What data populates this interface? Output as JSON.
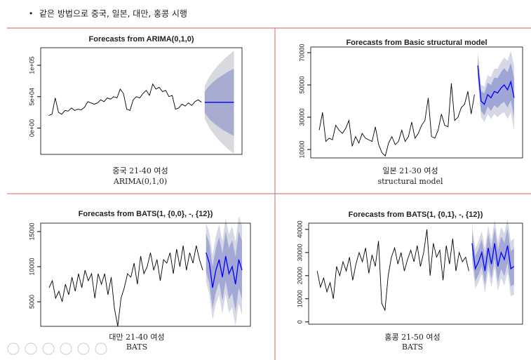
{
  "bullet": "같은 방법으로 중국, 일본, 대만, 홍콩 시행",
  "captions": [
    [
      "중국 21-40 여성",
      "ARIMA(0,1,0)"
    ],
    [
      "일본 21-30 여성",
      "structural model"
    ],
    [
      "대만 21-40 여성",
      "BATS"
    ],
    [
      "홍콩 21-50 여성",
      "BATS"
    ]
  ],
  "chart_data": [
    {
      "type": "line",
      "title": "Forecasts from ARIMA(0,1,0)",
      "color": "#000000",
      "ylim": [
        -42000,
        128000
      ],
      "yticks": [
        {
          "value": 0,
          "label": "0e+00"
        },
        {
          "value": 50000,
          "label": "5e+04"
        },
        {
          "value": 100000,
          "label": "1e+05"
        }
      ],
      "values": [
        20000,
        22000,
        48000,
        25000,
        22000,
        28000,
        27000,
        32000,
        28000,
        30000,
        29000,
        33000,
        42000,
        40000,
        38000,
        40000,
        45000,
        42000,
        48000,
        46000,
        50000,
        48000,
        62000,
        55000,
        30000,
        28000,
        45000,
        50000,
        48000,
        55000,
        60000,
        52000,
        70000,
        62000,
        65000,
        58000,
        60000,
        50000,
        52000,
        30000,
        32000,
        38000,
        35000,
        40000,
        36000,
        42000,
        45000,
        41000
      ],
      "forecast": {
        "color": "#0000ff",
        "fill80": "#a7acd0",
        "fill95": "#d9d9e0",
        "values": [
          41000,
          41000,
          41000,
          41000,
          41000,
          41000,
          41000,
          41000,
          41000,
          41000
        ],
        "hi95": [
          67000,
          77700,
          86000,
          93000,
          99200,
          104700,
          109900,
          114600,
          119000,
          123200
        ],
        "lo95": [
          15000,
          4300,
          -4000,
          -11000,
          -17200,
          -22700,
          -27900,
          -32600,
          -37000,
          -41200
        ],
        "hi80": [
          58000,
          65000,
          70400,
          75000,
          79100,
          82700,
          86100,
          89100,
          92000,
          94700
        ],
        "lo80": [
          24000,
          17000,
          11600,
          7000,
          2900,
          -700,
          -4100,
          -7100,
          -10000,
          -12700
        ]
      }
    },
    {
      "type": "line",
      "title": "Forecasts from Basic structural model",
      "color": "#000000",
      "ylim": [
        4800,
        73500
      ],
      "yticks": [
        10000,
        30000,
        50000,
        70000
      ],
      "values": [
        22000,
        33000,
        15000,
        17000,
        16000,
        25000,
        22000,
        20000,
        23000,
        28000,
        12000,
        18000,
        14000,
        20000,
        17000,
        16000,
        15000,
        24000,
        13000,
        8000,
        6000,
        14000,
        18000,
        13000,
        15000,
        22000,
        15000,
        18000,
        27000,
        17000,
        20000,
        25000,
        28000,
        42000,
        18000,
        17000,
        22000,
        32000,
        25000,
        24000,
        51000,
        28000,
        30000,
        36000,
        38000,
        46000,
        32000,
        44000
      ],
      "forecast": {
        "color": "#0000ff",
        "fill80": "#9fa6d6",
        "fill95": "#d6d8e6",
        "values": [
          62000,
          40000,
          38000,
          44000,
          42000,
          46000,
          45000,
          48000,
          50000,
          47000,
          52000,
          42000
        ],
        "hi95": [
          71000,
          50000,
          49000,
          56000,
          55000,
          60000,
          60000,
          64000,
          67000,
          65000,
          71000,
          62000
        ],
        "lo95": [
          53000,
          30000,
          27000,
          32000,
          29000,
          32000,
          30000,
          32000,
          33000,
          29000,
          33000,
          22000
        ],
        "hi80": [
          67600,
          46200,
          44800,
          51400,
          50000,
          54600,
          54200,
          57800,
          60400,
          58000,
          63600,
          54200
        ],
        "lo80": [
          56400,
          33800,
          31200,
          36600,
          34000,
          37400,
          35800,
          38200,
          39600,
          36000,
          40400,
          29800
        ]
      }
    },
    {
      "type": "line",
      "title": "Forecasts from BATS(1, {0,0}, -, {12})",
      "color": "#000000",
      "ylim": [
        1500,
        16200
      ],
      "yticks": [
        5000,
        10000,
        15000
      ],
      "values": [
        7000,
        8000,
        5500,
        6500,
        5000,
        7500,
        6000,
        8500,
        6500,
        9000,
        7000,
        9500,
        8000,
        9000,
        5500,
        9000,
        7500,
        9000,
        6000,
        8500,
        4000,
        1500,
        5500,
        7000,
        9000,
        8500,
        10500,
        7500,
        11500,
        9000,
        10000,
        12000,
        9500,
        11000,
        8000,
        11000,
        10500,
        12000,
        9000,
        12500,
        10000,
        13000,
        9500,
        12000,
        10500,
        13000,
        11000,
        9500
      ],
      "forecast": {
        "color": "#0000ff",
        "fill80": "#a3a9d4",
        "fill95": "#d6d8e6",
        "values": [
          12000,
          10500,
          7000,
          9500,
          11000,
          8500,
          11500,
          9000,
          10000,
          7500,
          11000,
          9500
        ],
        "hi95": [
          16200,
          14900,
          11600,
          14300,
          16000,
          13700,
          16900,
          14600,
          15800,
          13500,
          17200,
          15900
        ],
        "lo95": [
          7800,
          6100,
          2400,
          4700,
          6000,
          3300,
          6100,
          3400,
          4200,
          1500,
          4800,
          3100
        ],
        "hi80": [
          14730,
          13360,
          9990,
          12620,
          14250,
          11880,
          15010,
          12640,
          13770,
          11400,
          15030,
          13660
        ],
        "lo80": [
          9270,
          7640,
          4010,
          6380,
          7750,
          5120,
          7990,
          5360,
          6230,
          3600,
          6970,
          5340
        ]
      }
    },
    {
      "type": "line",
      "title": "Forecasts from BATS(1, {0,1}, -, {12})",
      "color": "#000000",
      "ylim": [
        -1000,
        42700
      ],
      "yticks": [
        0,
        10000,
        20000,
        30000,
        40000
      ],
      "values": [
        22000,
        15000,
        19000,
        13000,
        17000,
        10000,
        24000,
        20000,
        26000,
        22000,
        28000,
        18000,
        25000,
        30000,
        26000,
        32000,
        21000,
        29000,
        24000,
        35000,
        8000,
        5000,
        20000,
        28000,
        32000,
        25000,
        30000,
        22000,
        27000,
        31000,
        26000,
        33000,
        24000,
        30000,
        40000,
        20000,
        34000,
        28000,
        31000,
        18000,
        33000,
        25000,
        36000,
        22000,
        30000,
        26000,
        28000,
        22000
      ],
      "forecast": {
        "color": "#0000ff",
        "fill80": "#a3a9d4",
        "fill95": "#d6d8e6",
        "values": [
          34000,
          23000,
          26000,
          30000,
          22000,
          32000,
          25000,
          34000,
          24000,
          30000,
          27000,
          33000,
          23000,
          24000
        ],
        "hi95": [
          42300,
          31600,
          34900,
          39200,
          31500,
          41800,
          35100,
          44400,
          34700,
          41000,
          38300,
          44600,
          34900,
          36200
        ],
        "lo95": [
          25700,
          14400,
          17100,
          20800,
          12500,
          22200,
          14900,
          23600,
          13300,
          19000,
          15700,
          21400,
          11100,
          11800
        ],
        "hi80": [
          39200,
          28400,
          31600,
          35800,
          28000,
          38200,
          31400,
          40600,
          30800,
          37000,
          34200,
          40400,
          30600,
          31800
        ],
        "lo80": [
          28800,
          17600,
          20400,
          24200,
          16000,
          25800,
          18600,
          27400,
          17200,
          23000,
          19800,
          25600,
          15400,
          16200
        ]
      }
    }
  ]
}
